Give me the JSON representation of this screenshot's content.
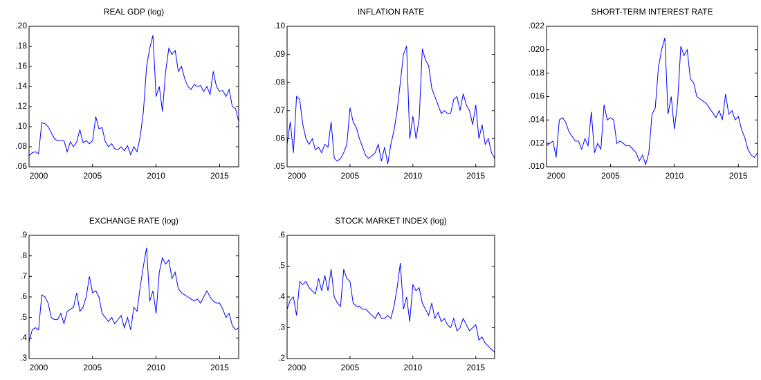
{
  "chart_data": [
    {
      "type": "line",
      "title": "REAL GDP (log)",
      "color": "#0000ff",
      "x": [
        2000,
        2000.25,
        2000.5,
        2000.75,
        2001,
        2001.25,
        2001.5,
        2001.75,
        2002,
        2002.25,
        2002.5,
        2002.75,
        2003,
        2003.25,
        2003.5,
        2003.75,
        2004,
        2004.25,
        2004.5,
        2004.75,
        2005,
        2005.25,
        2005.5,
        2005.75,
        2006,
        2006.25,
        2006.5,
        2006.75,
        2007,
        2007.25,
        2007.5,
        2007.75,
        2008,
        2008.25,
        2008.5,
        2008.75,
        2009,
        2009.25,
        2009.5,
        2009.75,
        2010,
        2010.25,
        2010.5,
        2010.75,
        2011,
        2011.25,
        2011.5,
        2011.75,
        2012,
        2012.25,
        2012.5,
        2012.75,
        2013,
        2013.25,
        2013.5,
        2013.75,
        2014,
        2014.25,
        2014.5,
        2014.75,
        2015,
        2015.25,
        2015.5,
        2015.75,
        2016,
        2016.25,
        2016.5
      ],
      "values": [
        0.071,
        0.074,
        0.075,
        0.073,
        0.104,
        0.103,
        0.1,
        0.094,
        0.088,
        0.086,
        0.086,
        0.086,
        0.075,
        0.085,
        0.08,
        0.085,
        0.097,
        0.084,
        0.086,
        0.083,
        0.086,
        0.11,
        0.098,
        0.099,
        0.085,
        0.08,
        0.083,
        0.078,
        0.077,
        0.08,
        0.076,
        0.081,
        0.072,
        0.08,
        0.075,
        0.09,
        0.115,
        0.16,
        0.178,
        0.191,
        0.13,
        0.14,
        0.115,
        0.155,
        0.178,
        0.172,
        0.176,
        0.155,
        0.16,
        0.148,
        0.14,
        0.137,
        0.142,
        0.14,
        0.141,
        0.135,
        0.14,
        0.132,
        0.155,
        0.14,
        0.135,
        0.136,
        0.13,
        0.137,
        0.12,
        0.118,
        0.105
      ],
      "xlim": [
        2000,
        2016.5
      ],
      "ylim": [
        0.06,
        0.2
      ],
      "xticks": [
        2000,
        2005,
        2010,
        2015
      ],
      "yticks": [
        {
          "value": 0.06,
          "label": ".06"
        },
        {
          "value": 0.08,
          "label": ".08"
        },
        {
          "value": 0.1,
          "label": ".10"
        },
        {
          "value": 0.12,
          "label": ".12"
        },
        {
          "value": 0.14,
          "label": ".14"
        },
        {
          "value": 0.16,
          "label": ".16"
        },
        {
          "value": 0.18,
          "label": ".18"
        },
        {
          "value": 0.2,
          "label": ".20"
        }
      ]
    },
    {
      "type": "line",
      "title": "INFLATION RATE",
      "color": "#0000ff",
      "x": [
        2000,
        2000.25,
        2000.5,
        2000.75,
        2001,
        2001.25,
        2001.5,
        2001.75,
        2002,
        2002.25,
        2002.5,
        2002.75,
        2003,
        2003.25,
        2003.5,
        2003.75,
        2004,
        2004.25,
        2004.5,
        2004.75,
        2005,
        2005.25,
        2005.5,
        2005.75,
        2006,
        2006.25,
        2006.5,
        2006.75,
        2007,
        2007.25,
        2007.5,
        2007.75,
        2008,
        2008.25,
        2008.5,
        2008.75,
        2009,
        2009.25,
        2009.5,
        2009.75,
        2010,
        2010.25,
        2010.5,
        2010.75,
        2011,
        2011.25,
        2011.5,
        2011.75,
        2012,
        2012.25,
        2012.5,
        2012.75,
        2013,
        2013.25,
        2013.5,
        2013.75,
        2014,
        2014.25,
        2014.5,
        2014.75,
        2015,
        2015.25,
        2015.5,
        2015.75,
        2016,
        2016.25,
        2016.5
      ],
      "values": [
        0.058,
        0.066,
        0.055,
        0.075,
        0.074,
        0.065,
        0.06,
        0.058,
        0.06,
        0.056,
        0.057,
        0.055,
        0.058,
        0.057,
        0.066,
        0.053,
        0.052,
        0.053,
        0.055,
        0.058,
        0.071,
        0.066,
        0.064,
        0.06,
        0.057,
        0.054,
        0.053,
        0.054,
        0.055,
        0.058,
        0.052,
        0.057,
        0.051,
        0.058,
        0.063,
        0.07,
        0.08,
        0.09,
        0.093,
        0.06,
        0.068,
        0.06,
        0.067,
        0.092,
        0.088,
        0.086,
        0.078,
        0.075,
        0.072,
        0.069,
        0.07,
        0.069,
        0.069,
        0.074,
        0.075,
        0.07,
        0.076,
        0.072,
        0.07,
        0.065,
        0.072,
        0.06,
        0.065,
        0.058,
        0.06,
        0.055,
        0.053
      ],
      "xlim": [
        2000,
        2016.5
      ],
      "ylim": [
        0.05,
        0.1
      ],
      "xticks": [
        2000,
        2005,
        2010,
        2015
      ],
      "yticks": [
        {
          "value": 0.05,
          "label": ".05"
        },
        {
          "value": 0.06,
          "label": ".06"
        },
        {
          "value": 0.07,
          "label": ".07"
        },
        {
          "value": 0.08,
          "label": ".08"
        },
        {
          "value": 0.09,
          "label": ".09"
        },
        {
          "value": 0.1,
          "label": ".10"
        }
      ]
    },
    {
      "type": "line",
      "title": "SHORT-TERM INTEREST RATE",
      "color": "#0000ff",
      "x": [
        2000,
        2000.25,
        2000.5,
        2000.75,
        2001,
        2001.25,
        2001.5,
        2001.75,
        2002,
        2002.25,
        2002.5,
        2002.75,
        2003,
        2003.25,
        2003.5,
        2003.75,
        2004,
        2004.25,
        2004.5,
        2004.75,
        2005,
        2005.25,
        2005.5,
        2005.75,
        2006,
        2006.25,
        2006.5,
        2006.75,
        2007,
        2007.25,
        2007.5,
        2007.75,
        2008,
        2008.25,
        2008.5,
        2008.75,
        2009,
        2009.25,
        2009.5,
        2009.75,
        2010,
        2010.25,
        2010.5,
        2010.75,
        2011,
        2011.25,
        2011.5,
        2011.75,
        2012,
        2012.25,
        2012.5,
        2012.75,
        2013,
        2013.25,
        2013.5,
        2013.75,
        2014,
        2014.25,
        2014.5,
        2014.75,
        2015,
        2015.25,
        2015.5,
        2015.75,
        2016,
        2016.25,
        2016.5
      ],
      "values": [
        0.0118,
        0.012,
        0.0122,
        0.0108,
        0.014,
        0.0142,
        0.0138,
        0.013,
        0.0126,
        0.0122,
        0.0122,
        0.0115,
        0.0124,
        0.0118,
        0.0147,
        0.0112,
        0.012,
        0.0115,
        0.0153,
        0.014,
        0.0142,
        0.014,
        0.012,
        0.0122,
        0.012,
        0.0118,
        0.0118,
        0.0115,
        0.0112,
        0.0105,
        0.011,
        0.0102,
        0.0112,
        0.0145,
        0.015,
        0.0185,
        0.02,
        0.021,
        0.0145,
        0.016,
        0.0132,
        0.0155,
        0.0203,
        0.0195,
        0.02,
        0.0175,
        0.0172,
        0.016,
        0.0158,
        0.0156,
        0.0154,
        0.015,
        0.0146,
        0.0142,
        0.0148,
        0.014,
        0.0162,
        0.0145,
        0.0148,
        0.014,
        0.0143,
        0.0132,
        0.0125,
        0.0115,
        0.011,
        0.0108,
        0.0112
      ],
      "xlim": [
        2000,
        2016.5
      ],
      "ylim": [
        0.01,
        0.022
      ],
      "xticks": [
        2000,
        2005,
        2010,
        2015
      ],
      "yticks": [
        {
          "value": 0.01,
          "label": ".010"
        },
        {
          "value": 0.012,
          "label": ".012"
        },
        {
          "value": 0.014,
          "label": ".014"
        },
        {
          "value": 0.016,
          "label": ".016"
        },
        {
          "value": 0.018,
          "label": ".018"
        },
        {
          "value": 0.02,
          "label": ".020"
        },
        {
          "value": 0.022,
          "label": ".022"
        }
      ]
    },
    {
      "type": "line",
      "title": "EXCHANGE RATE (log)",
      "color": "#0000ff",
      "x": [
        2000,
        2000.25,
        2000.5,
        2000.75,
        2001,
        2001.25,
        2001.5,
        2001.75,
        2002,
        2002.25,
        2002.5,
        2002.75,
        2003,
        2003.25,
        2003.5,
        2003.75,
        2004,
        2004.25,
        2004.5,
        2004.75,
        2005,
        2005.25,
        2005.5,
        2005.75,
        2006,
        2006.25,
        2006.5,
        2006.75,
        2007,
        2007.25,
        2007.5,
        2007.75,
        2008,
        2008.25,
        2008.5,
        2008.75,
        2009,
        2009.25,
        2009.5,
        2009.75,
        2010,
        2010.25,
        2010.5,
        2010.75,
        2011,
        2011.25,
        2011.5,
        2011.75,
        2012,
        2012.25,
        2012.5,
        2012.75,
        2013,
        2013.25,
        2013.5,
        2013.75,
        2014,
        2014.25,
        2014.5,
        2014.75,
        2015,
        2015.25,
        2015.5,
        2015.75,
        2016,
        2016.25,
        2016.5
      ],
      "values": [
        0.38,
        0.44,
        0.45,
        0.44,
        0.61,
        0.6,
        0.57,
        0.5,
        0.49,
        0.49,
        0.52,
        0.47,
        0.53,
        0.54,
        0.55,
        0.62,
        0.53,
        0.55,
        0.6,
        0.7,
        0.62,
        0.63,
        0.6,
        0.52,
        0.5,
        0.48,
        0.5,
        0.47,
        0.49,
        0.51,
        0.45,
        0.5,
        0.44,
        0.55,
        0.53,
        0.65,
        0.75,
        0.84,
        0.58,
        0.63,
        0.52,
        0.72,
        0.79,
        0.76,
        0.78,
        0.69,
        0.72,
        0.64,
        0.62,
        0.61,
        0.6,
        0.59,
        0.58,
        0.59,
        0.57,
        0.6,
        0.63,
        0.6,
        0.58,
        0.57,
        0.57,
        0.54,
        0.5,
        0.52,
        0.46,
        0.44,
        0.45
      ],
      "xlim": [
        2000,
        2016.5
      ],
      "ylim": [
        0.3,
        0.9
      ],
      "xticks": [
        2000,
        2005,
        2010,
        2015
      ],
      "yticks": [
        {
          "value": 0.3,
          "label": ".3"
        },
        {
          "value": 0.4,
          "label": ".4"
        },
        {
          "value": 0.5,
          "label": ".5"
        },
        {
          "value": 0.6,
          "label": ".6"
        },
        {
          "value": 0.7,
          "label": ".7"
        },
        {
          "value": 0.8,
          "label": ".8"
        },
        {
          "value": 0.9,
          "label": ".9"
        }
      ]
    },
    {
      "type": "line",
      "title": "STOCK MARKET INDEX (log)",
      "color": "#0000ff",
      "x": [
        2000,
        2000.25,
        2000.5,
        2000.75,
        2001,
        2001.25,
        2001.5,
        2001.75,
        2002,
        2002.25,
        2002.5,
        2002.75,
        2003,
        2003.25,
        2003.5,
        2003.75,
        2004,
        2004.25,
        2004.5,
        2004.75,
        2005,
        2005.25,
        2005.5,
        2005.75,
        2006,
        2006.25,
        2006.5,
        2006.75,
        2007,
        2007.25,
        2007.5,
        2007.75,
        2008,
        2008.25,
        2008.5,
        2008.75,
        2009,
        2009.25,
        2009.5,
        2009.75,
        2010,
        2010.25,
        2010.5,
        2010.75,
        2011,
        2011.25,
        2011.5,
        2011.75,
        2012,
        2012.25,
        2012.5,
        2012.75,
        2013,
        2013.25,
        2013.5,
        2013.75,
        2014,
        2014.25,
        2014.5,
        2014.75,
        2015,
        2015.25,
        2015.5,
        2015.75,
        2016,
        2016.25,
        2016.5
      ],
      "values": [
        0.36,
        0.39,
        0.4,
        0.34,
        0.45,
        0.44,
        0.45,
        0.43,
        0.42,
        0.41,
        0.46,
        0.42,
        0.47,
        0.42,
        0.49,
        0.4,
        0.38,
        0.37,
        0.49,
        0.46,
        0.45,
        0.38,
        0.37,
        0.37,
        0.36,
        0.36,
        0.35,
        0.34,
        0.33,
        0.35,
        0.33,
        0.33,
        0.34,
        0.33,
        0.37,
        0.43,
        0.51,
        0.36,
        0.4,
        0.32,
        0.44,
        0.42,
        0.43,
        0.38,
        0.36,
        0.34,
        0.38,
        0.33,
        0.35,
        0.32,
        0.33,
        0.31,
        0.3,
        0.33,
        0.29,
        0.3,
        0.33,
        0.31,
        0.29,
        0.3,
        0.31,
        0.26,
        0.27,
        0.25,
        0.24,
        0.23,
        0.22
      ],
      "xlim": [
        2000,
        2016.5
      ],
      "ylim": [
        0.2,
        0.6
      ],
      "xticks": [
        2000,
        2005,
        2010,
        2015
      ],
      "yticks": [
        {
          "value": 0.2,
          "label": ".2"
        },
        {
          "value": 0.3,
          "label": ".3"
        },
        {
          "value": 0.4,
          "label": ".4"
        },
        {
          "value": 0.5,
          "label": ".5"
        },
        {
          "value": 0.6,
          "label": ".6"
        }
      ]
    }
  ]
}
